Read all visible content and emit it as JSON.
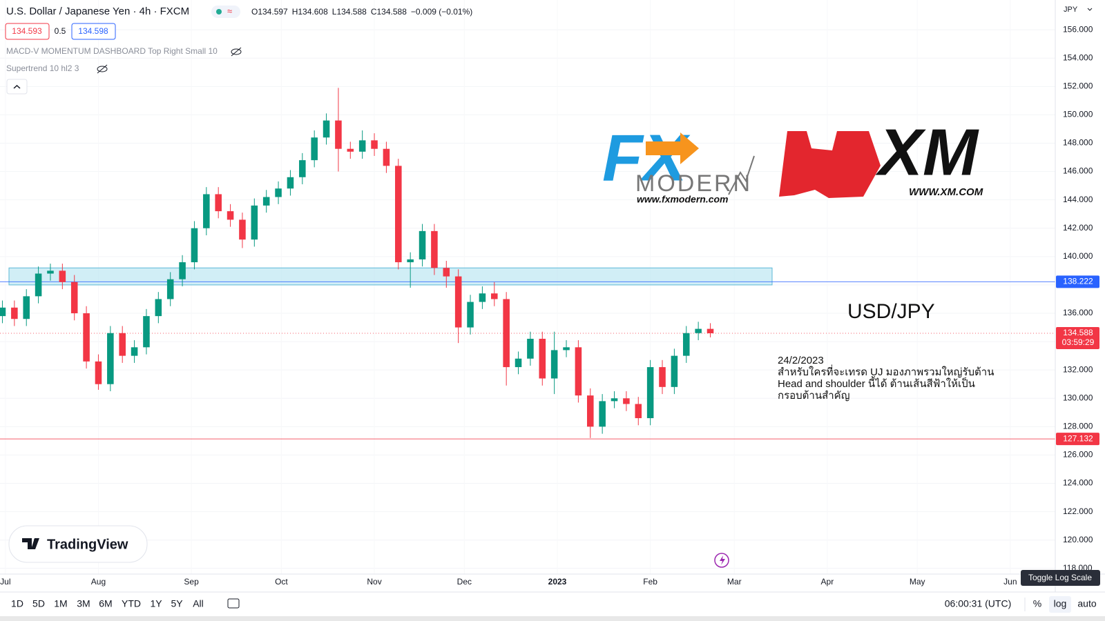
{
  "header": {
    "title": "U.S. Dollar / Japanese Yen · 4h · FXCM",
    "ohlc": [
      "O134.597",
      "H134.608",
      "L134.588",
      "C134.588"
    ],
    "change": "−0.009 (−0.01%)",
    "sell": "134.593",
    "spread": "0.5",
    "buy": "134.598",
    "indicators": [
      "MACD-V MOMENTUM DASHBOARD Top Right Small 10",
      "Supertrend 10 hl2 3"
    ],
    "currency": "JPY"
  },
  "overlays": {
    "fx_logo": "FX",
    "fx_name": "MODERN",
    "fx_url": "www.fxmodern.com",
    "xm_logo": "XM",
    "xm_url": "WWW.XM.COM",
    "pair": "USD/JPY",
    "note": [
      "24/2/2023",
      "สำหรับใครที่จะเทรด UJ มองภาพรวมใหญ่รับต้าน",
      "Head and shoulder นี้ได้ ต้านเส้นสีฟ้าให้เป็น",
      "กรอบต้านสำคัญ"
    ],
    "brand": "TradingView"
  },
  "chart_data": {
    "type": "candlestick",
    "up_color": "#089981",
    "down_color": "#f23645",
    "grid": true,
    "x": [
      -1,
      3,
      7,
      11,
      15,
      19,
      23,
      27,
      31,
      35,
      39,
      43,
      47,
      51,
      55,
      59,
      63,
      67,
      71,
      75,
      79,
      83,
      87,
      91,
      95,
      99,
      103,
      107,
      111,
      115,
      119,
      123,
      127,
      131,
      135,
      139,
      143,
      147,
      151,
      155,
      159,
      163,
      167,
      171,
      175,
      179,
      183,
      187,
      191,
      195,
      199,
      203,
      207,
      211,
      215,
      219,
      223,
      227,
      231,
      235
    ],
    "opens": [
      135.8,
      136.4,
      135.6,
      137.2,
      138.8,
      139.0,
      138.2,
      136.0,
      132.6,
      131.0,
      134.6,
      133.0,
      133.6,
      135.8,
      137.0,
      138.4,
      139.6,
      142.0,
      144.4,
      143.2,
      142.6,
      141.2,
      143.6,
      144.2,
      144.8,
      145.6,
      146.8,
      148.4,
      149.6,
      147.6,
      147.4,
      148.2,
      147.6,
      146.4,
      139.6,
      139.8,
      141.8,
      139.2,
      138.6,
      135.0,
      136.8,
      137.4,
      137.0,
      132.2,
      132.8,
      134.2,
      131.4,
      133.4,
      133.6,
      130.2,
      128.0,
      129.8,
      130.0,
      129.6,
      128.6,
      132.2,
      130.8,
      133.0,
      134.6,
      134.9
    ],
    "highs": [
      136.9,
      136.9,
      137.7,
      139.3,
      139.5,
      139.5,
      138.7,
      136.5,
      133.1,
      135.1,
      135.1,
      134.1,
      136.3,
      137.5,
      138.9,
      140.1,
      142.5,
      144.9,
      144.9,
      143.7,
      143.1,
      144.1,
      144.7,
      145.3,
      146.1,
      147.3,
      148.9,
      150.1,
      151.9,
      148.1,
      148.9,
      148.7,
      148.1,
      146.9,
      140.3,
      142.3,
      142.3,
      139.7,
      139.1,
      137.3,
      137.9,
      138.2,
      137.5,
      133.3,
      134.7,
      134.7,
      134.7,
      134.1,
      134.1,
      130.7,
      130.3,
      130.5,
      130.5,
      130.1,
      132.7,
      132.7,
      133.5,
      135.1,
      135.4,
      135.3
    ],
    "lows": [
      135.3,
      135.1,
      135.1,
      136.7,
      138.3,
      137.7,
      135.5,
      132.1,
      130.6,
      130.5,
      132.5,
      132.5,
      133.1,
      135.3,
      136.5,
      137.9,
      139.1,
      141.5,
      142.7,
      142.1,
      140.6,
      140.7,
      143.1,
      143.7,
      144.3,
      145.1,
      146.3,
      147.9,
      146.0,
      146.9,
      146.9,
      147.1,
      145.9,
      139.1,
      137.8,
      139.3,
      138.7,
      137.8,
      133.9,
      134.5,
      136.3,
      136.5,
      130.9,
      131.7,
      132.3,
      130.9,
      130.3,
      132.9,
      129.7,
      127.2,
      127.5,
      129.3,
      129.1,
      128.1,
      128.1,
      130.3,
      130.3,
      132.5,
      134.1,
      134.3
    ],
    "closes": [
      136.4,
      135.6,
      137.2,
      138.8,
      139.0,
      138.2,
      136.0,
      132.6,
      131.0,
      134.6,
      133.0,
      133.6,
      135.8,
      137.0,
      138.4,
      139.6,
      142.0,
      144.4,
      143.2,
      142.6,
      141.2,
      143.6,
      144.2,
      144.8,
      145.6,
      146.8,
      148.4,
      149.6,
      147.6,
      147.4,
      148.2,
      147.6,
      146.4,
      139.6,
      139.8,
      141.8,
      139.2,
      138.6,
      135.0,
      136.8,
      137.4,
      137.0,
      132.2,
      132.8,
      134.2,
      131.4,
      133.4,
      133.6,
      130.2,
      128.0,
      129.8,
      130.0,
      129.6,
      128.6,
      132.2,
      130.8,
      133.0,
      134.6,
      134.9,
      134.588
    ],
    "xlim": [
      -1.8,
      350
    ],
    "ylim": [
      117.6,
      158.1
    ],
    "xticks": [
      {
        "value": 0,
        "label": "Jul"
      },
      {
        "value": 31,
        "label": "Aug"
      },
      {
        "value": 62,
        "label": "Sep"
      },
      {
        "value": 92,
        "label": "Oct"
      },
      {
        "value": 123,
        "label": "Nov"
      },
      {
        "value": 153,
        "label": "Dec"
      },
      {
        "value": 184,
        "label": "2023"
      },
      {
        "value": 215,
        "label": "Feb"
      },
      {
        "value": 243,
        "label": "Mar"
      },
      {
        "value": 274,
        "label": "Apr"
      },
      {
        "value": 304,
        "label": "May"
      },
      {
        "value": 335,
        "label": "Jun"
      }
    ],
    "yticks": [
      {
        "value": 118,
        "label": "118.000"
      },
      {
        "value": 120,
        "label": "120.000"
      },
      {
        "value": 122,
        "label": "122.000"
      },
      {
        "value": 124,
        "label": "124.000"
      },
      {
        "value": 126,
        "label": "126.000"
      },
      {
        "value": 128,
        "label": "128.000"
      },
      {
        "value": 130,
        "label": "130.000"
      },
      {
        "value": 132,
        "label": "132.000"
      },
      {
        "value": 134,
        "label": "134.000"
      },
      {
        "value": 136,
        "label": "136.000"
      },
      {
        "value": 138,
        "label": "138.000"
      },
      {
        "value": 140,
        "label": "140.000"
      },
      {
        "value": 142,
        "label": "142.000"
      },
      {
        "value": 144,
        "label": "144.000"
      },
      {
        "value": 146,
        "label": "146.000"
      },
      {
        "value": 148,
        "label": "148.000"
      },
      {
        "value": 150,
        "label": "150.000"
      },
      {
        "value": 152,
        "label": "152.000"
      },
      {
        "value": 154,
        "label": "154.000"
      },
      {
        "value": 156,
        "label": "156.000"
      }
    ],
    "zone": {
      "low": 138.0,
      "high": 139.2,
      "x": [
        -1.8,
        255.6
      ],
      "color": "#b2e3f0"
    },
    "price_lines": [
      {
        "value": 138.222,
        "label": "138.222",
        "color": "#2962ff",
        "style": "solid"
      },
      {
        "value": 134.588,
        "label": "134.588",
        "color": "#f23645",
        "style": "dotted",
        "countdown": "03:59:29"
      },
      {
        "value": 127.132,
        "label": "127.132",
        "color": "#f23645",
        "style": "solid"
      }
    ]
  },
  "toolbar": {
    "ranges": [
      "1D",
      "5D",
      "1M",
      "3M",
      "6M",
      "YTD",
      "1Y",
      "5Y",
      "All"
    ],
    "clock": "06:00:31 (UTC)",
    "percent": "%",
    "log": "log",
    "auto": "auto",
    "tooltip": "Toggle Log Scale"
  }
}
